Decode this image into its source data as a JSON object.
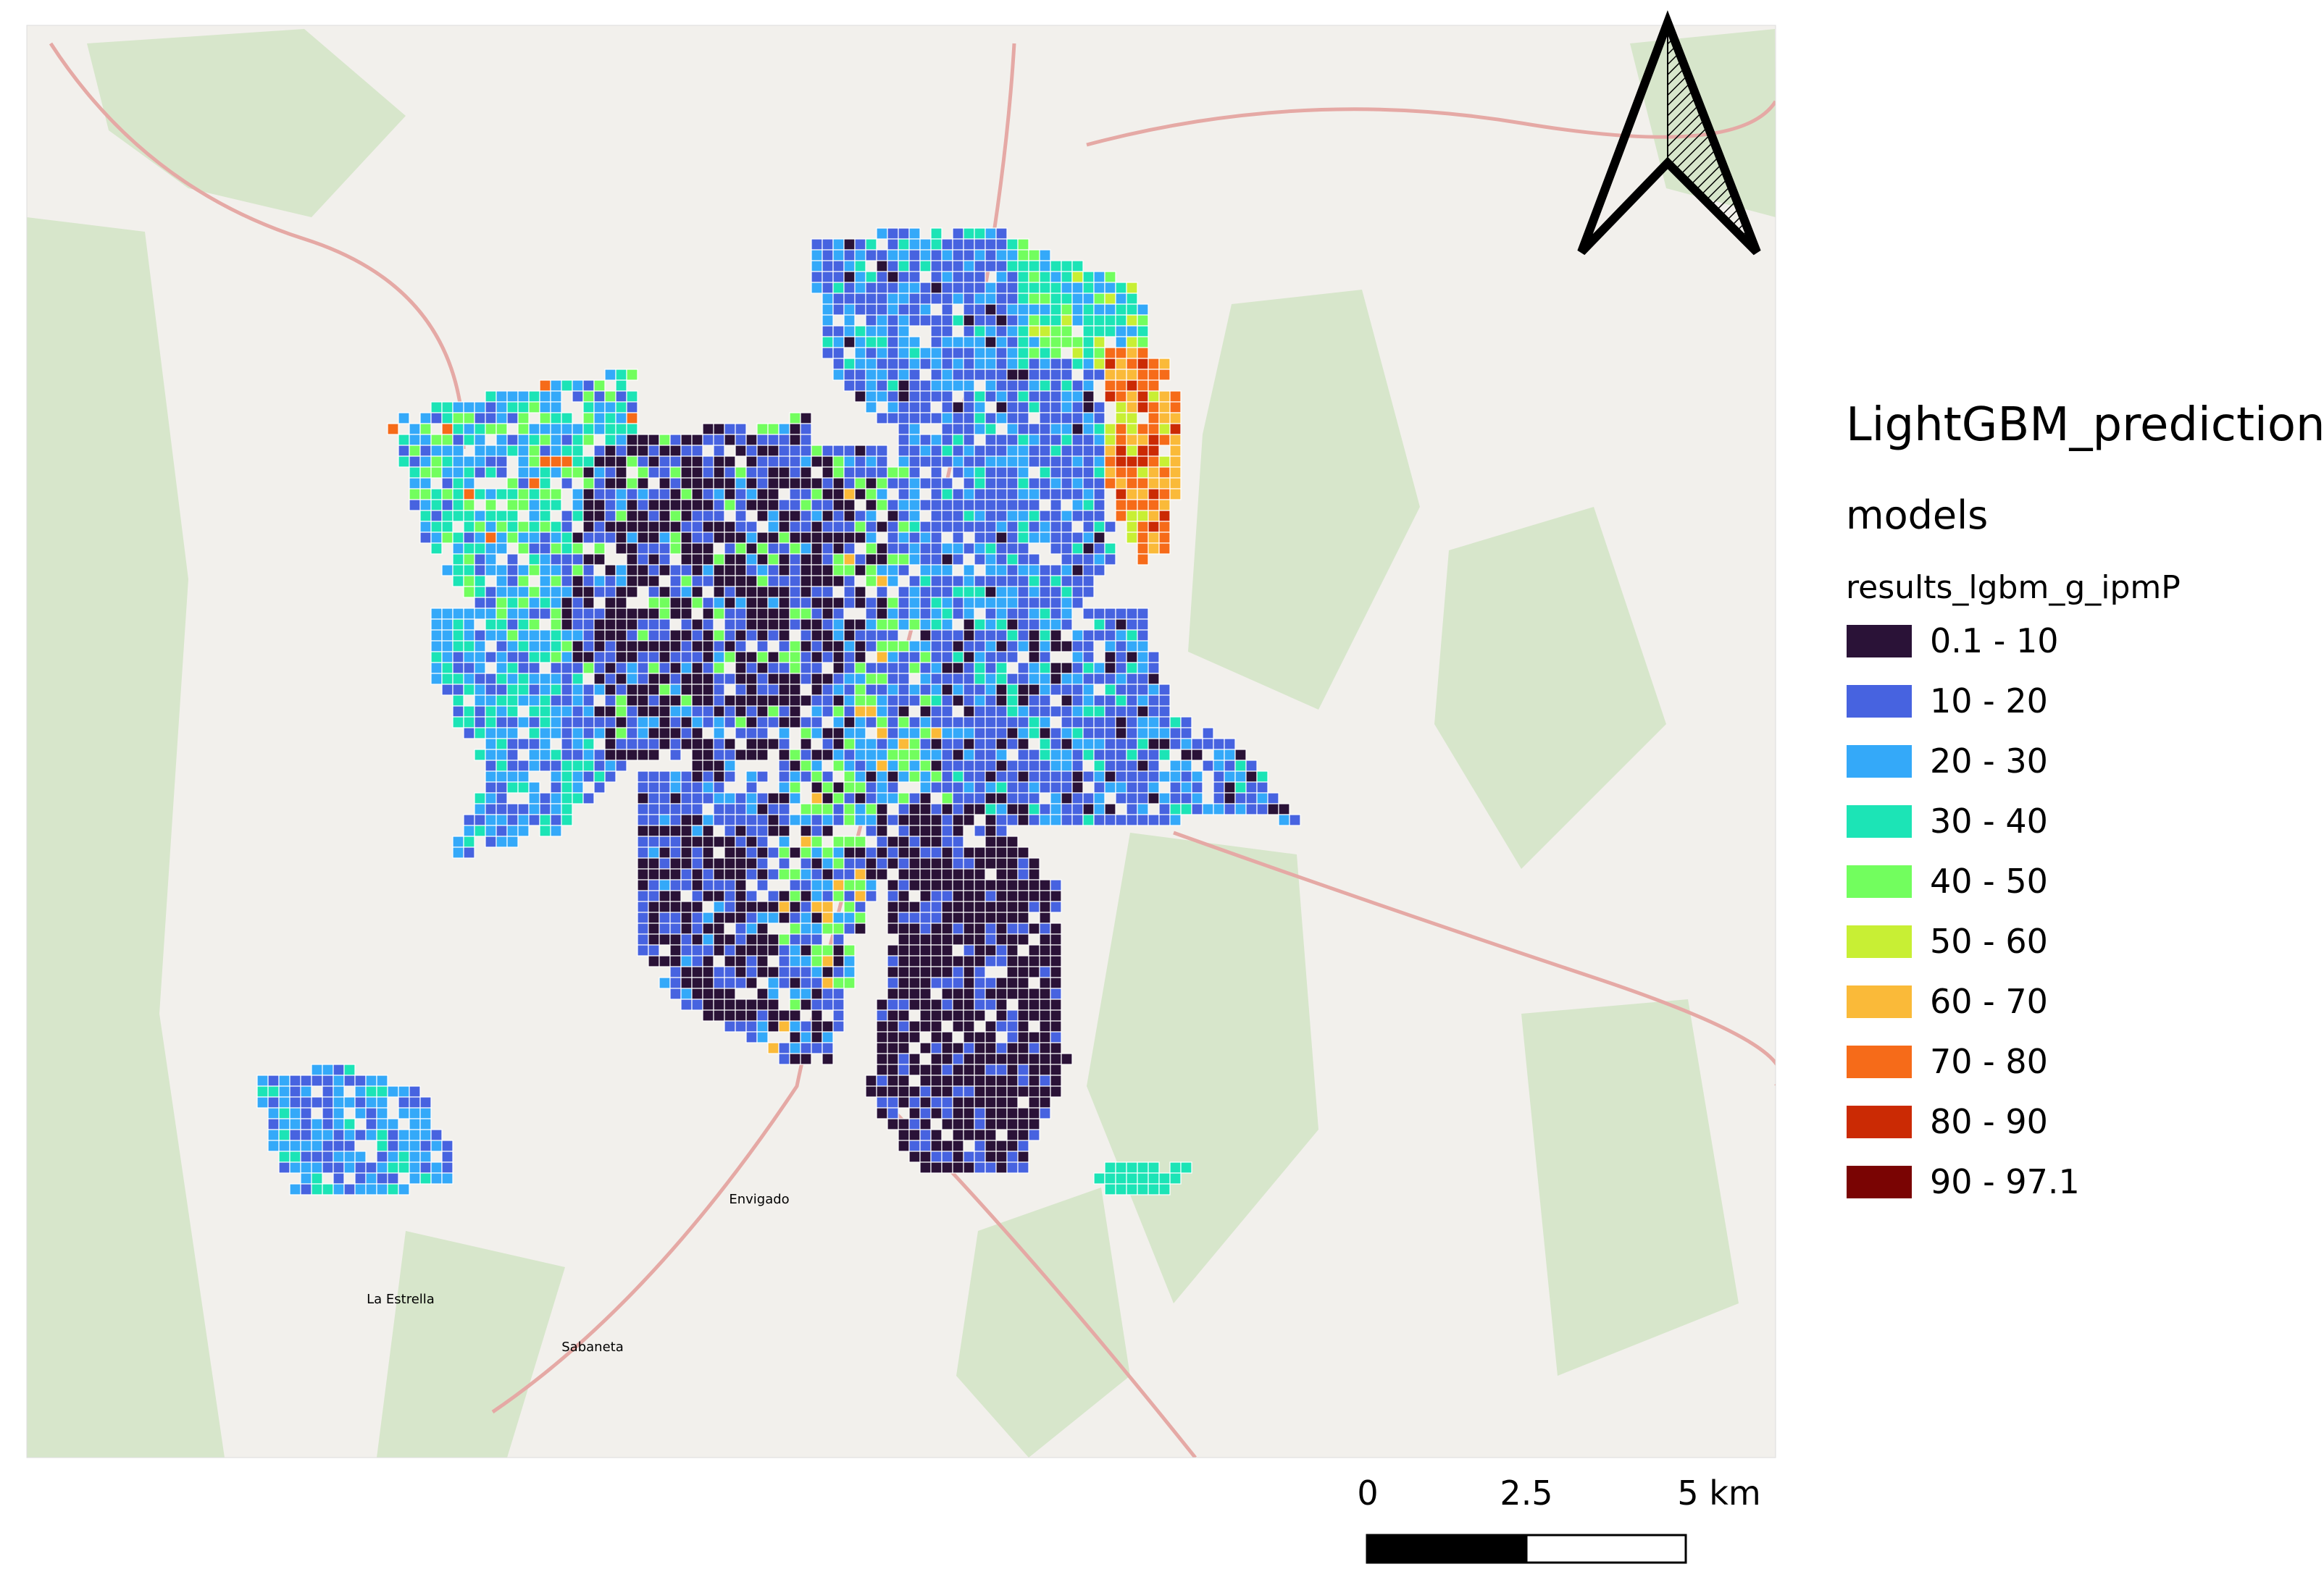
{
  "map": {
    "place_labels": [
      "Envigado",
      "Sabaneta",
      "La Estrella"
    ]
  },
  "legend": {
    "title": "LightGBM_prediction",
    "group": "models",
    "layer": "results_lgbm_g_ipmP",
    "classes": [
      {
        "label": "0.1 - 10",
        "color": "#2a1237"
      },
      {
        "label": "10 - 20",
        "color": "#4763e0"
      },
      {
        "label": "20 - 30",
        "color": "#34a9f9"
      },
      {
        "label": "30 - 40",
        "color": "#1ce4b6"
      },
      {
        "label": "40 - 50",
        "color": "#72fe5e"
      },
      {
        "label": "50 - 60",
        "color": "#c8ef34"
      },
      {
        "label": "60 - 70",
        "color": "#faba39"
      },
      {
        "label": "70 - 80",
        "color": "#f66b19"
      },
      {
        "label": "80 - 90",
        "color": "#cb2a04"
      },
      {
        "label": "90 - 97.1",
        "color": "#7a0403"
      }
    ]
  },
  "scale_bar": {
    "labels": [
      "0",
      "2.5",
      "5 km"
    ]
  }
}
